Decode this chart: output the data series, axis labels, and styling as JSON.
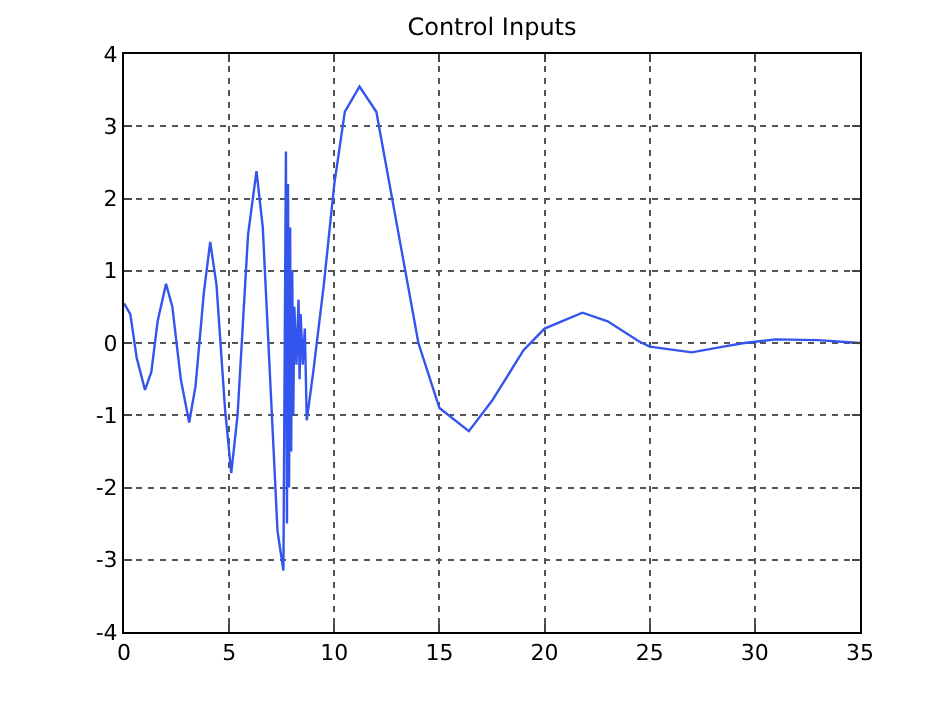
{
  "chart_data": {
    "type": "line",
    "title": "Control Inputs",
    "x": [
      0,
      0.3,
      0.6,
      1.0,
      1.3,
      1.6,
      2.0,
      2.3,
      2.7,
      3.1,
      3.4,
      3.8,
      4.1,
      4.4,
      4.8,
      5.1,
      5.4,
      5.9,
      6.3,
      6.6,
      7.0,
      7.3,
      7.58,
      7.7,
      7.75,
      7.8,
      7.85,
      7.9,
      7.95,
      8.0,
      8.05,
      8.1,
      8.2,
      8.3,
      8.35,
      8.4,
      8.5,
      8.6,
      8.69,
      9.0,
      9.5,
      10.0,
      10.5,
      11.2,
      12.0,
      13.0,
      14.0,
      15.0,
      16.4,
      17.5,
      19.0,
      20.0,
      21.8,
      23.0,
      24.5,
      25.0,
      27.0,
      28.5,
      29.5,
      31.0,
      33.0,
      35.0
    ],
    "series": [
      {
        "color": "#3355ee",
        "values": [
          0.55,
          0.4,
          -0.2,
          -0.65,
          -0.4,
          0.3,
          0.82,
          0.5,
          -0.5,
          -1.1,
          -0.6,
          0.7,
          1.4,
          0.8,
          -0.9,
          -1.8,
          -1.0,
          1.5,
          2.38,
          1.6,
          -0.8,
          -2.6,
          -3.15,
          2.65,
          -2.5,
          2.2,
          -2.0,
          1.6,
          -1.5,
          1.0,
          -1.0,
          0.5,
          -0.3,
          0.6,
          -0.5,
          0.4,
          -0.3,
          0.2,
          -1.07,
          -0.4,
          0.8,
          2.2,
          3.2,
          3.55,
          3.2,
          1.6,
          0.0,
          -0.9,
          -1.22,
          -0.8,
          -0.1,
          0.2,
          0.42,
          0.3,
          0.02,
          -0.05,
          -0.13,
          -0.05,
          0.0,
          0.05,
          0.04,
          0.0
        ]
      }
    ],
    "xlim": [
      0,
      35
    ],
    "xticks": [
      0,
      5,
      10,
      15,
      20,
      25,
      30,
      35
    ],
    "ylim": [
      -4,
      4
    ],
    "yticks": [
      -4,
      -3,
      -2,
      -1,
      0,
      1,
      2,
      3,
      4
    ],
    "grid": true,
    "line_style": "solid"
  }
}
